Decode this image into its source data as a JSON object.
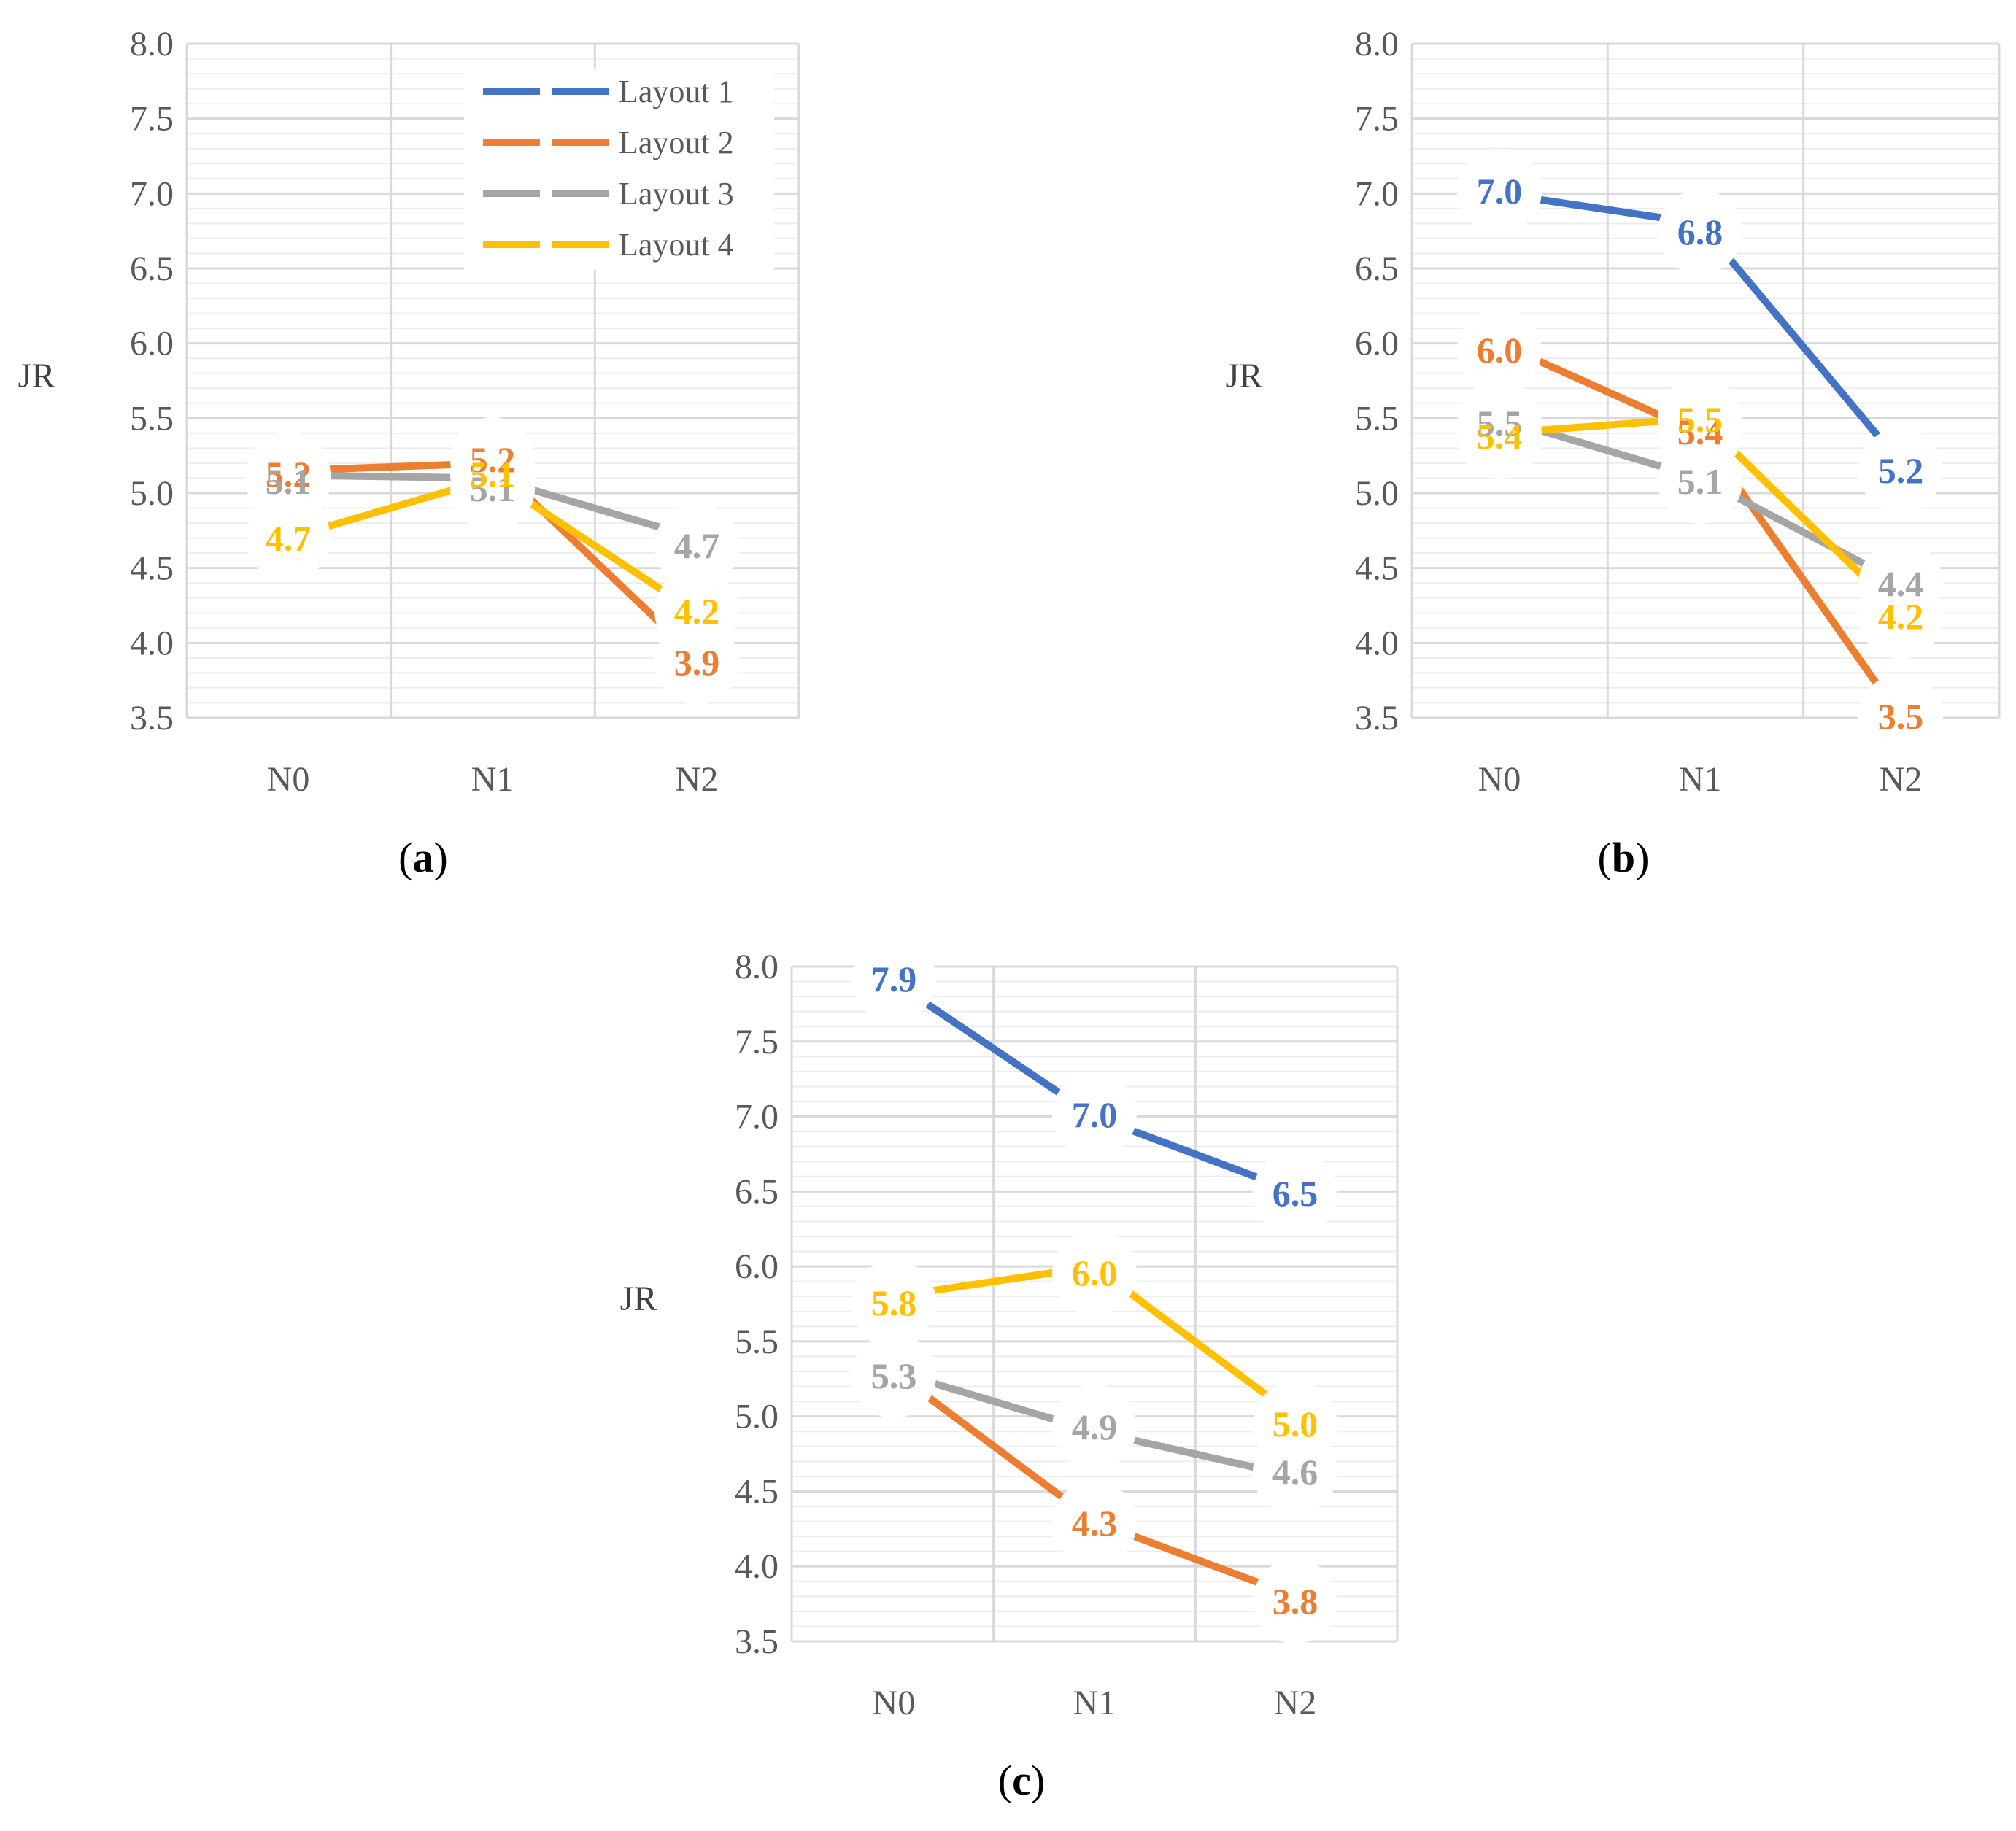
{
  "colors": {
    "layout1": "#4472C4",
    "layout2": "#ED7D31",
    "layout3": "#A5A5A5",
    "layout4": "#FFC000",
    "grid_major": "#D9D9D9",
    "grid_minor": "#EDEDED"
  },
  "legend": {
    "items": [
      "Layout 1",
      "Layout 2",
      "Layout 3",
      "Layout 4"
    ]
  },
  "chart_data": [
    {
      "type": "line",
      "caption": "a",
      "categories": [
        "N0",
        "N1",
        "N2"
      ],
      "ylabel": "JR",
      "ylim": [
        3.5,
        8.0
      ],
      "yticks": [
        "3.5",
        "4.0",
        "4.5",
        "5.0",
        "5.5",
        "6.0",
        "6.5",
        "7.0",
        "7.5",
        "8.0"
      ],
      "legend_position": "top-right",
      "series": [
        {
          "name": "Layout 1",
          "values": [
            null,
            null,
            null
          ],
          "labels": [
            "",
            "",
            ""
          ]
        },
        {
          "name": "Layout 2",
          "values": [
            5.15,
            5.2,
            3.9
          ],
          "labels": [
            "5.2",
            "5.2",
            "3.9"
          ]
        },
        {
          "name": "Layout 3",
          "values": [
            5.12,
            5.1,
            4.7
          ],
          "labels": [
            "5.1",
            "5.1",
            "4.7"
          ]
        },
        {
          "name": "Layout 4",
          "values": [
            4.7,
            5.1,
            4.2
          ],
          "labels": [
            "4.7",
            "5.1",
            "4.2"
          ]
        }
      ]
    },
    {
      "type": "line",
      "caption": "b",
      "categories": [
        "N0",
        "N1",
        "N2"
      ],
      "ylabel": "JR",
      "ylim": [
        3.5,
        8.0
      ],
      "yticks": [
        "3.5",
        "4.0",
        "4.5",
        "5.0",
        "5.5",
        "6.0",
        "6.5",
        "7.0",
        "7.5",
        "8.0"
      ],
      "series": [
        {
          "name": "Layout 1",
          "values": [
            7.0,
            6.8,
            5.2
          ],
          "labels": [
            "7.0",
            "6.8",
            "5.2"
          ]
        },
        {
          "name": "Layout 2",
          "values": [
            6.0,
            5.4,
            3.5
          ],
          "labels": [
            "6.0",
            "5.4",
            "3.5"
          ]
        },
        {
          "name": "Layout 3",
          "values": [
            5.5,
            5.1,
            4.4
          ],
          "labels": [
            "5.5",
            "5.1",
            "4.4"
          ]
        },
        {
          "name": "Layout 4",
          "values": [
            5.4,
            5.5,
            4.2
          ],
          "labels": [
            "5.4",
            "5.5",
            "4.2"
          ]
        }
      ]
    },
    {
      "type": "line",
      "caption": "c",
      "categories": [
        "N0",
        "N1",
        "N2"
      ],
      "ylabel": "JR",
      "ylim": [
        3.5,
        8.0
      ],
      "yticks": [
        "3.5",
        "4.0",
        "4.5",
        "5.0",
        "5.5",
        "6.0",
        "6.5",
        "7.0",
        "7.5",
        "8.0"
      ],
      "series": [
        {
          "name": "Layout 1",
          "values": [
            7.9,
            7.0,
            6.5
          ],
          "labels": [
            "7.9",
            "7.0",
            "6.5"
          ]
        },
        {
          "name": "Layout 2",
          "values": [
            5.3,
            4.3,
            3.8
          ],
          "labels": [
            "5.3",
            "4.3",
            "3.8"
          ]
        },
        {
          "name": "Layout 3",
          "values": [
            5.3,
            4.9,
            4.6
          ],
          "labels": [
            "5.3",
            "4.9",
            "4.6"
          ]
        },
        {
          "name": "Layout 4",
          "values": [
            5.8,
            6.0,
            5.0
          ],
          "labels": [
            "5.8",
            "6.0",
            "5.0"
          ]
        }
      ]
    }
  ]
}
